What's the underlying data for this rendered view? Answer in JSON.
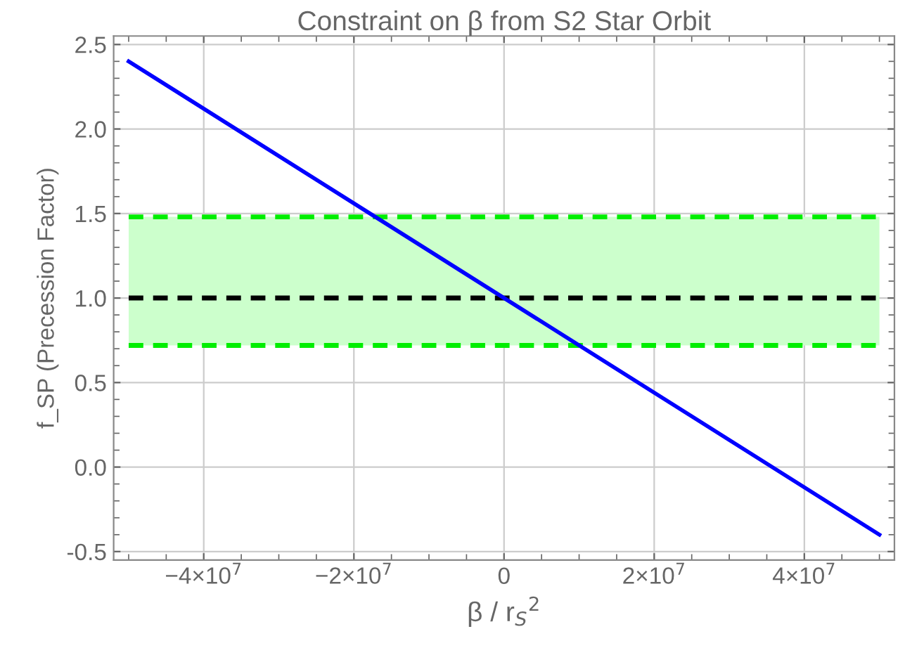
{
  "chart_data": {
    "type": "line",
    "title": "Constraint on β from S2 Star Orbit",
    "xlabel": "β / r$_{S}$$^{2}$",
    "ylabel": "f_SP (Precession Factor)",
    "series": [
      {
        "color": "#0000ff",
        "x": [
          -50000000,
          50000000
        ],
        "values": [
          2.4,
          -0.4
        ]
      }
    ],
    "xlim": [
      -52000000,
      52000000
    ],
    "xticks": [
      {
        "value": -40000000,
        "label": "−4×10$^{7}$"
      },
      {
        "value": -20000000,
        "label": "−2×10$^{7}$"
      },
      0,
      {
        "value": 20000000,
        "label": "2×10$^{7}$"
      },
      {
        "value": 40000000,
        "label": "4×10$^{7}$"
      }
    ],
    "ylim": [
      -0.55,
      2.55
    ],
    "yticks": [
      -0.5,
      {
        "value": 0,
        "label": "0.0"
      },
      0.5,
      {
        "value": 1,
        "label": "1.0"
      },
      1.5,
      {
        "value": 2,
        "label": "2.0"
      },
      2.5
    ],
    "bands": [
      {
        "axis": "y",
        "from": 0.72,
        "to": 1.48,
        "color": "#ccffcc"
      }
    ],
    "ref_lines": [
      {
        "axis": "y",
        "value": 1.48,
        "color": "#00ee00",
        "line_style": "dashed"
      },
      {
        "axis": "y",
        "value": 0.72,
        "color": "#00ee00",
        "line_style": "dashed"
      },
      {
        "axis": "y",
        "value": 1.0,
        "color": "#000000",
        "line_style": "dashed"
      }
    ],
    "grid": true
  }
}
